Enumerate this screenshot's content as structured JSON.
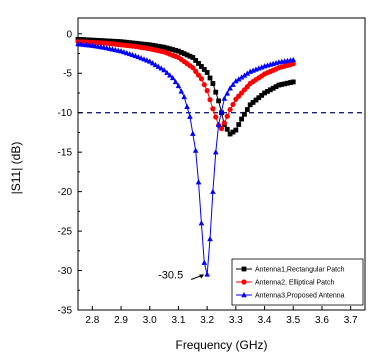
{
  "chart_data": {
    "type": "line",
    "title": "",
    "xlabel": "Frequency (GHz)",
    "ylabel": "|S11| (dB)",
    "xlim": [
      2.75,
      3.75
    ],
    "ylim": [
      -35,
      2
    ],
    "xticks": [
      2.8,
      2.9,
      3.0,
      3.1,
      3.2,
      3.3,
      3.4,
      3.5,
      3.6,
      3.7
    ],
    "xtick_labels": [
      "2.8",
      "2.9",
      "3.0",
      "3.1",
      "3.2",
      "3.3",
      "3.4",
      "3.5",
      "3.6",
      "3.7"
    ],
    "yticks": [
      0,
      -5,
      -10,
      -15,
      -20,
      -25,
      -30,
      -35
    ],
    "ytick_labels": [
      "0",
      "-5",
      "-10",
      "-15",
      "-20",
      "-25",
      "-30",
      "-35"
    ],
    "grid": false,
    "legend_position": "bottom-right",
    "reference_line": {
      "y": -10,
      "style": "dashed",
      "color": "#1a237e"
    },
    "annotations": [
      {
        "text": "-30.5",
        "x": 3.2,
        "y": -30.5
      }
    ],
    "series": [
      {
        "name": "Antenna1,Rectangular Patch",
        "color": "#000000",
        "marker": "square",
        "x": [
          2.75,
          2.8,
          2.85,
          2.9,
          2.95,
          3.0,
          3.05,
          3.1,
          3.15,
          3.2,
          3.22,
          3.24,
          3.26,
          3.28,
          3.3,
          3.32,
          3.35,
          3.4,
          3.45,
          3.5
        ],
        "y": [
          -0.7,
          -0.8,
          -0.9,
          -1.0,
          -1.2,
          -1.4,
          -1.7,
          -2.2,
          -3.0,
          -4.9,
          -6.3,
          -8.5,
          -11.5,
          -12.7,
          -12.2,
          -10.8,
          -9.0,
          -7.5,
          -6.5,
          -6.1
        ]
      },
      {
        "name": "Antenna2, Elliptical Patch",
        "color": "#ff0000",
        "marker": "circle",
        "x": [
          2.75,
          2.8,
          2.85,
          2.9,
          2.95,
          3.0,
          3.05,
          3.1,
          3.15,
          3.18,
          3.2,
          3.22,
          3.24,
          3.25,
          3.26,
          3.28,
          3.3,
          3.35,
          3.4,
          3.45,
          3.5
        ],
        "y": [
          -1.0,
          -1.1,
          -1.2,
          -1.4,
          -1.6,
          -1.9,
          -2.3,
          -3.0,
          -4.3,
          -5.7,
          -7.2,
          -9.5,
          -11.6,
          -12.0,
          -11.3,
          -9.6,
          -8.3,
          -6.3,
          -5.1,
          -4.3,
          -3.8
        ]
      },
      {
        "name": "Antenna3,Proposed Antenna",
        "color": "#0000ff",
        "marker": "triangle",
        "x": [
          2.75,
          2.8,
          2.85,
          2.9,
          2.95,
          3.0,
          3.05,
          3.08,
          3.1,
          3.12,
          3.14,
          3.16,
          3.17,
          3.18,
          3.19,
          3.2,
          3.21,
          3.22,
          3.23,
          3.24,
          3.26,
          3.28,
          3.3,
          3.35,
          3.4,
          3.45,
          3.5
        ],
        "y": [
          -1.3,
          -1.5,
          -1.8,
          -2.2,
          -2.8,
          -3.5,
          -4.6,
          -5.6,
          -6.6,
          -8.0,
          -10.5,
          -14.8,
          -18.8,
          -24.0,
          -29.0,
          -30.5,
          -26.0,
          -20.0,
          -15.0,
          -11.5,
          -8.2,
          -6.9,
          -6.0,
          -4.8,
          -4.1,
          -3.6,
          -3.3
        ]
      }
    ]
  }
}
